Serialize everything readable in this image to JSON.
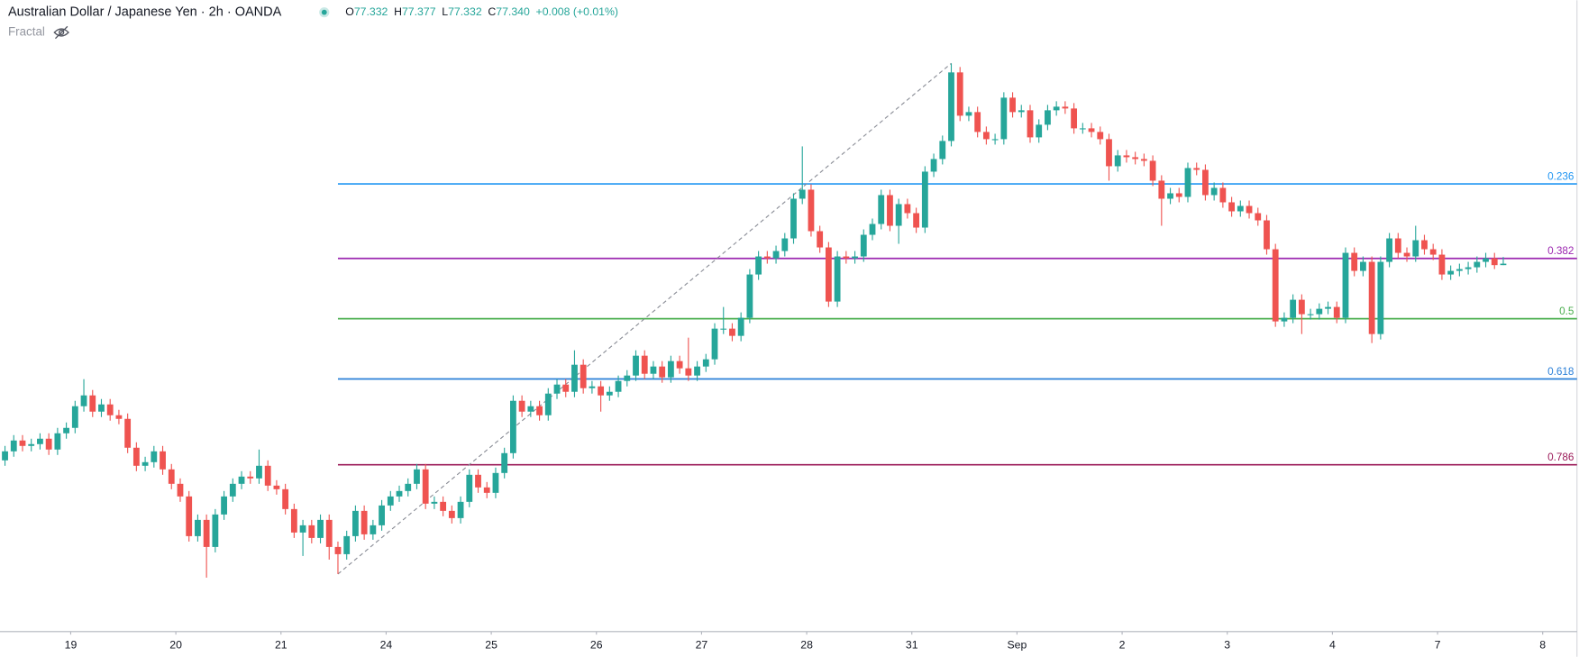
{
  "chart_data": {
    "type": "candlestick",
    "title": "Australian Dollar / Japanese Yen · 2h · OANDA",
    "legend": {
      "labels": [
        "O",
        "H",
        "L",
        "C"
      ],
      "values": [
        "77.332",
        "77.377",
        "77.332",
        "77.340"
      ],
      "change": "+0.008 (+0.01%)"
    },
    "indicator": "Fractal",
    "colors": {
      "up": "#26a69a",
      "down": "#ef5350"
    },
    "xlim": [
      -0.57,
      177.0
    ],
    "ylim": [
      75.34,
      78.8
    ],
    "xticks": [
      {
        "value": 7.5,
        "label": "19"
      },
      {
        "value": 19.5,
        "label": "20"
      },
      {
        "value": 31.5,
        "label": "21"
      },
      {
        "value": 43.5,
        "label": "24"
      },
      {
        "value": 55.5,
        "label": "25"
      },
      {
        "value": 67.5,
        "label": "26"
      },
      {
        "value": 79.5,
        "label": "27"
      },
      {
        "value": 91.5,
        "label": "28"
      },
      {
        "value": 103.5,
        "label": "31"
      },
      {
        "value": 115.5,
        "label": "Sep"
      },
      {
        "value": 127.5,
        "label": "2"
      },
      {
        "value": 139.5,
        "label": "3"
      },
      {
        "value": 151.5,
        "label": "4"
      },
      {
        "value": 163.5,
        "label": "7"
      },
      {
        "value": 175.5,
        "label": "8"
      }
    ],
    "fib": {
      "x": [
        38,
        108
      ],
      "y": [
        75.62,
        78.45
      ],
      "levels": [
        0.236,
        0.382,
        0.5,
        0.618,
        0.786
      ],
      "colors": [
        "#2196f3",
        "#9c27b0",
        "#4caf50",
        "#2a7fd8",
        "#9c1c5a"
      ]
    },
    "open": [
      76.25,
      76.3,
      76.36,
      76.33,
      76.34,
      76.37,
      76.31,
      76.4,
      76.43,
      76.55,
      76.61,
      76.52,
      76.56,
      76.5,
      76.48,
      76.32,
      76.22,
      76.24,
      76.3,
      76.2,
      76.12,
      76.05,
      75.83,
      75.92,
      75.77,
      75.95,
      76.05,
      76.12,
      76.16,
      76.15,
      76.22,
      76.11,
      76.09,
      75.98,
      75.85,
      75.89,
      75.82,
      75.92,
      75.77,
      75.73,
      75.83,
      75.97,
      75.84,
      75.89,
      76.0,
      76.05,
      76.08,
      76.12,
      76.2,
      76.01,
      76.02,
      75.97,
      75.93,
      76.02,
      76.17,
      76.1,
      76.07,
      76.18,
      76.29,
      76.58,
      76.52,
      76.55,
      76.5,
      76.62,
      76.67,
      76.63,
      76.78,
      76.65,
      76.66,
      76.61,
      76.63,
      76.69,
      76.72,
      76.83,
      76.73,
      76.77,
      76.71,
      76.8,
      76.76,
      76.72,
      76.77,
      76.81,
      76.98,
      76.98,
      76.94,
      77.04,
      77.28,
      77.38,
      77.37,
      77.41,
      77.48,
      77.7,
      77.75,
      77.52,
      77.43,
      77.13,
      77.38,
      77.37,
      77.38,
      77.5,
      77.56,
      77.72,
      77.55,
      77.67,
      77.62,
      77.54,
      77.85,
      77.92,
      78.02,
      78.4,
      78.16,
      78.18,
      78.07,
      78.03,
      78.03,
      78.26,
      78.18,
      78.19,
      78.04,
      78.11,
      78.19,
      78.21,
      78.2,
      78.09,
      78.09,
      78.07,
      78.03,
      77.88,
      77.94,
      77.93,
      77.92,
      77.91,
      77.8,
      77.7,
      77.73,
      77.71,
      77.87,
      77.86,
      77.72,
      77.76,
      77.68,
      77.63,
      77.66,
      77.62,
      77.58,
      77.42,
      77.02,
      77.04,
      77.14,
      77.06,
      77.06,
      77.09,
      77.1,
      77.04,
      77.4,
      77.3,
      77.35,
      76.95,
      77.35,
      77.48,
      77.4,
      77.38,
      77.47,
      77.42,
      77.39,
      77.28,
      77.3,
      77.31,
      77.32,
      77.35,
      77.37,
      77.332
    ],
    "high": [
      76.33,
      76.39,
      76.39,
      76.37,
      76.4,
      76.4,
      76.43,
      76.46,
      76.58,
      76.7,
      76.64,
      76.59,
      76.59,
      76.53,
      76.51,
      76.35,
      76.27,
      76.33,
      76.33,
      76.23,
      76.15,
      76.08,
      75.95,
      75.95,
      75.98,
      76.08,
      76.15,
      76.19,
      76.19,
      76.31,
      76.25,
      76.14,
      76.12,
      76.01,
      75.92,
      75.92,
      75.95,
      75.95,
      75.8,
      75.86,
      76.0,
      76.0,
      75.92,
      76.03,
      76.08,
      76.11,
      76.15,
      76.23,
      76.23,
      76.05,
      76.05,
      76.0,
      76.05,
      76.2,
      76.2,
      76.13,
      76.21,
      76.32,
      76.61,
      76.61,
      76.58,
      76.58,
      76.65,
      76.7,
      76.7,
      76.86,
      76.81,
      76.69,
      76.69,
      76.66,
      76.72,
      76.75,
      76.86,
      76.86,
      76.8,
      76.8,
      76.83,
      76.83,
      76.93,
      76.8,
      76.84,
      77.01,
      77.1,
      77.01,
      77.07,
      77.31,
      77.41,
      77.41,
      77.44,
      77.51,
      77.73,
      77.99,
      77.78,
      77.55,
      77.46,
      77.41,
      77.41,
      77.41,
      77.53,
      77.59,
      77.75,
      77.75,
      77.7,
      77.7,
      77.65,
      77.88,
      77.95,
      78.05,
      78.45,
      78.43,
      78.21,
      78.21,
      78.1,
      78.06,
      78.29,
      78.29,
      78.22,
      78.22,
      78.14,
      78.22,
      78.24,
      78.24,
      78.23,
      78.12,
      78.12,
      78.1,
      78.06,
      77.97,
      77.97,
      77.96,
      77.95,
      77.94,
      77.83,
      77.76,
      77.76,
      77.9,
      77.9,
      77.89,
      77.79,
      77.79,
      77.71,
      77.69,
      77.69,
      77.65,
      77.61,
      77.45,
      77.07,
      77.17,
      77.17,
      77.09,
      77.12,
      77.13,
      77.13,
      77.43,
      77.43,
      77.38,
      77.38,
      77.38,
      77.51,
      77.51,
      77.43,
      77.55,
      77.5,
      77.45,
      77.42,
      77.33,
      77.34,
      77.35,
      77.38,
      77.4,
      77.4,
      77.377
    ],
    "low": [
      76.22,
      76.27,
      76.3,
      76.3,
      76.31,
      76.28,
      76.28,
      76.37,
      76.4,
      76.52,
      76.49,
      76.49,
      76.47,
      76.45,
      76.29,
      76.19,
      76.19,
      76.21,
      76.17,
      76.09,
      76.02,
      75.8,
      75.8,
      75.6,
      75.74,
      75.92,
      76.02,
      76.09,
      76.12,
      76.12,
      76.08,
      76.06,
      75.95,
      75.82,
      75.72,
      75.79,
      75.79,
      75.7,
      75.62,
      75.7,
      75.8,
      75.81,
      75.81,
      75.86,
      75.97,
      76.02,
      76.05,
      76.09,
      75.98,
      75.98,
      75.94,
      75.9,
      75.9,
      75.99,
      76.07,
      76.04,
      76.04,
      76.15,
      76.26,
      76.49,
      76.49,
      76.47,
      76.47,
      76.59,
      76.6,
      76.6,
      76.62,
      76.62,
      76.52,
      76.58,
      76.6,
      76.66,
      76.69,
      76.7,
      76.7,
      76.68,
      76.68,
      76.73,
      76.69,
      76.69,
      76.74,
      76.78,
      76.95,
      76.91,
      76.91,
      77.01,
      77.25,
      77.34,
      77.34,
      77.38,
      77.45,
      77.67,
      77.49,
      77.4,
      77.1,
      77.1,
      77.34,
      77.34,
      77.35,
      77.47,
      77.53,
      77.52,
      77.45,
      77.59,
      77.51,
      77.51,
      77.82,
      77.89,
      77.99,
      78.13,
      78.13,
      78.04,
      78.0,
      78.0,
      78.0,
      78.15,
      78.15,
      78.01,
      78.01,
      78.08,
      78.16,
      78.17,
      78.06,
      78.06,
      78.04,
      78.0,
      77.8,
      77.85,
      77.9,
      77.89,
      77.88,
      77.77,
      77.55,
      77.67,
      77.68,
      77.68,
      77.83,
      77.69,
      77.69,
      77.65,
      77.6,
      77.6,
      77.59,
      77.55,
      77.39,
      76.99,
      76.99,
      77.01,
      76.95,
      77.03,
      77.03,
      77.06,
      77.01,
      77.01,
      77.27,
      77.27,
      76.9,
      76.92,
      77.32,
      77.37,
      77.35,
      77.35,
      77.39,
      77.36,
      77.25,
      77.25,
      77.27,
      77.28,
      77.29,
      77.32,
      77.31,
      77.332
    ],
    "close": [
      76.3,
      76.36,
      76.33,
      76.34,
      76.37,
      76.31,
      76.4,
      76.43,
      76.55,
      76.61,
      76.52,
      76.56,
      76.5,
      76.48,
      76.32,
      76.22,
      76.24,
      76.3,
      76.2,
      76.12,
      76.05,
      75.83,
      75.92,
      75.77,
      75.95,
      76.05,
      76.12,
      76.16,
      76.15,
      76.22,
      76.11,
      76.09,
      75.98,
      75.85,
      75.89,
      75.82,
      75.92,
      75.77,
      75.73,
      75.83,
      75.97,
      75.84,
      75.89,
      76.0,
      76.05,
      76.08,
      76.12,
      76.2,
      76.01,
      76.02,
      75.97,
      75.93,
      76.02,
      76.17,
      76.1,
      76.07,
      76.18,
      76.29,
      76.58,
      76.52,
      76.55,
      76.5,
      76.62,
      76.67,
      76.63,
      76.78,
      76.65,
      76.66,
      76.61,
      76.63,
      76.69,
      76.72,
      76.83,
      76.73,
      76.77,
      76.71,
      76.8,
      76.76,
      76.72,
      76.77,
      76.81,
      76.98,
      76.98,
      76.94,
      77.04,
      77.28,
      77.38,
      77.37,
      77.41,
      77.48,
      77.7,
      77.75,
      77.52,
      77.43,
      77.13,
      77.38,
      77.37,
      77.38,
      77.5,
      77.56,
      77.72,
      77.55,
      77.67,
      77.62,
      77.54,
      77.85,
      77.92,
      78.02,
      78.4,
      78.16,
      78.18,
      78.07,
      78.03,
      78.03,
      78.26,
      78.18,
      78.19,
      78.04,
      78.11,
      78.19,
      78.21,
      78.2,
      78.09,
      78.09,
      78.07,
      78.03,
      77.88,
      77.94,
      77.93,
      77.92,
      77.91,
      77.8,
      77.7,
      77.73,
      77.71,
      77.87,
      77.86,
      77.72,
      77.76,
      77.68,
      77.63,
      77.66,
      77.62,
      77.58,
      77.42,
      77.02,
      77.04,
      77.14,
      77.06,
      77.06,
      77.09,
      77.1,
      77.04,
      77.4,
      77.3,
      77.35,
      76.95,
      77.35,
      77.48,
      77.4,
      77.38,
      77.47,
      77.42,
      77.39,
      77.28,
      77.3,
      77.31,
      77.32,
      77.35,
      77.37,
      77.332,
      77.34
    ]
  }
}
